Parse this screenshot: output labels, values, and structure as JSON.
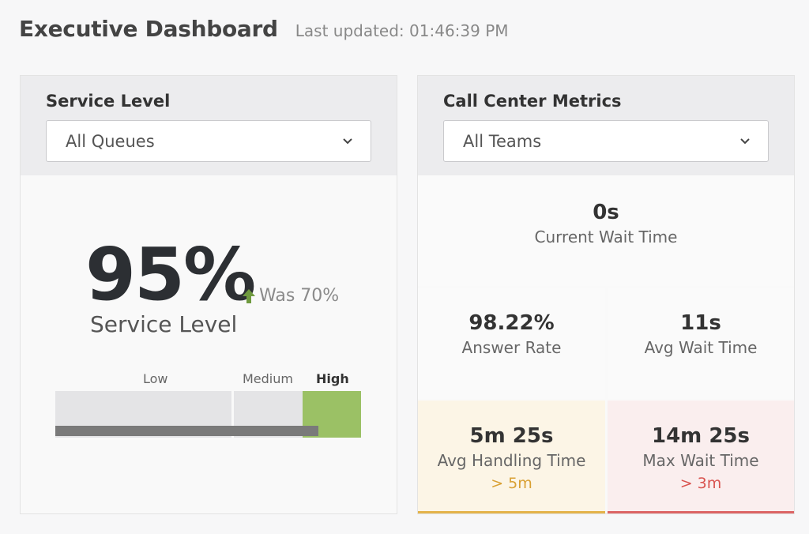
{
  "header": {
    "title": "Executive Dashboard",
    "last_updated": "Last updated: 01:46:39 PM"
  },
  "service_level": {
    "title": "Service Level",
    "queue_select": "All Queues",
    "value": "95%",
    "was": "Was 70%",
    "label": "Service Level",
    "bar": {
      "labels": {
        "low": "Low",
        "medium": "Medium",
        "high": "High"
      },
      "active": "High",
      "progress_percent": 86,
      "colors": {
        "inactive": "#e4e4e6",
        "active": "#9bc165",
        "fill": "#7a7a7a"
      }
    }
  },
  "call_center": {
    "title": "Call Center Metrics",
    "team_select": "All Teams",
    "current_wait": {
      "value": "0s",
      "label": "Current Wait Time"
    },
    "answer_rate": {
      "value": "98.22%",
      "label": "Answer Rate"
    },
    "avg_wait": {
      "value": "11s",
      "label": "Avg Wait Time"
    },
    "avg_handling": {
      "value": "5m 25s",
      "label": "Avg Handling Time",
      "threshold": "> 5m",
      "color": "#e4b34a"
    },
    "max_wait": {
      "value": "14m 25s",
      "label": "Max Wait Time",
      "threshold": "> 3m",
      "color": "#dc6565"
    }
  }
}
